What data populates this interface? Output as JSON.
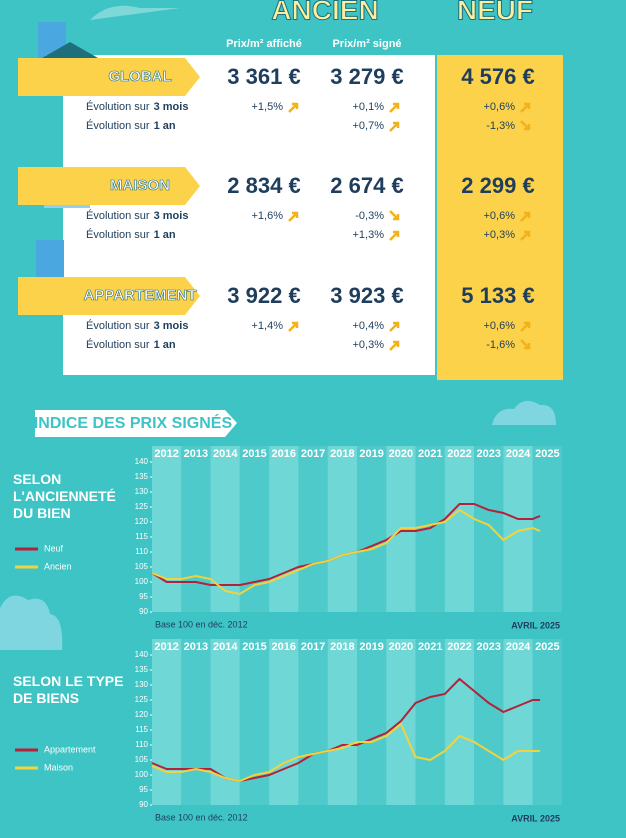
{
  "header": {
    "ancien": "ANCIEN",
    "neuf": "NEUF",
    "col_affiche": "Prix/m² affiché",
    "col_signe": "Prix/m² signé"
  },
  "table": {
    "evolution_label": "Évolution sur",
    "periods": [
      "3 mois",
      "1 an"
    ],
    "rows": [
      {
        "name": "GLOBAL",
        "affiche": "3 361 €",
        "signe": "3 279 €",
        "neuf": "4 576 €",
        "evolution": [
          {
            "affiche": "+1,5%",
            "signe": "+0,1%",
            "neuf": "+0,6%"
          },
          {
            "signe": "+0,7%",
            "neuf": "-1,3%"
          }
        ]
      },
      {
        "name": "MAISON",
        "affiche": "2 834 €",
        "signe": "2 674 €",
        "neuf": "2 299 €",
        "evolution": [
          {
            "affiche": "+1,6%",
            "signe": "-0,3%",
            "neuf": "+0,6%"
          },
          {
            "signe": "+1,3%",
            "neuf": "+0,3%"
          }
        ]
      },
      {
        "name": "APPARTEMENT",
        "affiche": "3 922 €",
        "signe": "3 923 €",
        "neuf": "5 133 €",
        "evolution": [
          {
            "affiche": "+1,4%",
            "signe": "+0,4%",
            "neuf": "+0,6%"
          },
          {
            "signe": "+0,3%",
            "neuf": "-1,6%"
          }
        ]
      }
    ]
  },
  "section_title": "INDICE DES PRIX SIGNÉS",
  "chart_data": [
    {
      "type": "line",
      "title": "SELON L'ANCIENNETÉ DU BIEN",
      "note": "Base 100 en déc. 2012",
      "date": "AVRIL 2025",
      "categories": [
        "2012",
        "2013",
        "2014",
        "2015",
        "2016",
        "2017",
        "2018",
        "2019",
        "2020",
        "2021",
        "2022",
        "2023",
        "2024",
        "2025"
      ],
      "x": [
        2012,
        2012.5,
        2013,
        2013.5,
        2014,
        2014.5,
        2015,
        2015.5,
        2016,
        2016.5,
        2017,
        2017.5,
        2018,
        2018.5,
        2019,
        2019.5,
        2020,
        2020.5,
        2021,
        2021.5,
        2022,
        2022.5,
        2023,
        2023.5,
        2024,
        2024.5,
        2025,
        2025.25
      ],
      "xlim": [
        2012,
        2026
      ],
      "ylim": [
        90,
        140
      ],
      "yticks": [
        90,
        95,
        100,
        105,
        110,
        115,
        120,
        125,
        130,
        135,
        140
      ],
      "series": [
        {
          "name": "Neuf",
          "color": "#b5213a",
          "values": [
            103,
            100,
            100,
            100,
            99,
            99,
            99,
            100,
            101,
            103,
            105,
            106,
            107,
            109,
            110,
            112,
            114,
            117,
            117,
            118,
            121,
            126,
            126,
            124,
            123,
            121,
            121,
            122
          ]
        },
        {
          "name": "Ancien",
          "color": "#f2d33b",
          "values": [
            103,
            101,
            101,
            102,
            101,
            97,
            96,
            99,
            100,
            102,
            104,
            106,
            107,
            109,
            110,
            111,
            113,
            118,
            118,
            119,
            120,
            124,
            121,
            119,
            114,
            117,
            118,
            117
          ]
        }
      ]
    },
    {
      "type": "line",
      "title": "SELON LE TYPE DE BIENS",
      "note": "Base 100 en déc. 2012",
      "date": "AVRIL 2025",
      "categories": [
        "2012",
        "2013",
        "2014",
        "2015",
        "2016",
        "2017",
        "2018",
        "2019",
        "2020",
        "2021",
        "2022",
        "2023",
        "2024",
        "2025"
      ],
      "x": [
        2012,
        2012.5,
        2013,
        2013.5,
        2014,
        2014.5,
        2015,
        2015.5,
        2016,
        2016.5,
        2017,
        2017.5,
        2018,
        2018.5,
        2019,
        2019.5,
        2020,
        2020.5,
        2021,
        2021.5,
        2022,
        2022.5,
        2023,
        2023.5,
        2024,
        2024.5,
        2025,
        2025.25
      ],
      "xlim": [
        2012,
        2026
      ],
      "ylim": [
        90,
        140
      ],
      "yticks": [
        90,
        95,
        100,
        105,
        110,
        115,
        120,
        125,
        130,
        135,
        140
      ],
      "series": [
        {
          "name": "Appartement",
          "color": "#b5213a",
          "values": [
            104,
            102,
            102,
            102,
            102,
            99,
            98,
            99,
            100,
            102,
            104,
            107,
            108,
            110,
            110,
            112,
            114,
            118,
            124,
            126,
            127,
            132,
            128,
            124,
            121,
            123,
            125,
            125
          ]
        },
        {
          "name": "Maison",
          "color": "#f2d33b",
          "values": [
            103,
            101,
            101,
            102,
            101,
            99,
            98,
            100,
            101,
            104,
            106,
            107,
            108,
            109,
            111,
            111,
            113,
            117,
            106,
            105,
            108,
            113,
            111,
            108,
            105,
            108,
            108,
            108
          ]
        }
      ]
    }
  ]
}
